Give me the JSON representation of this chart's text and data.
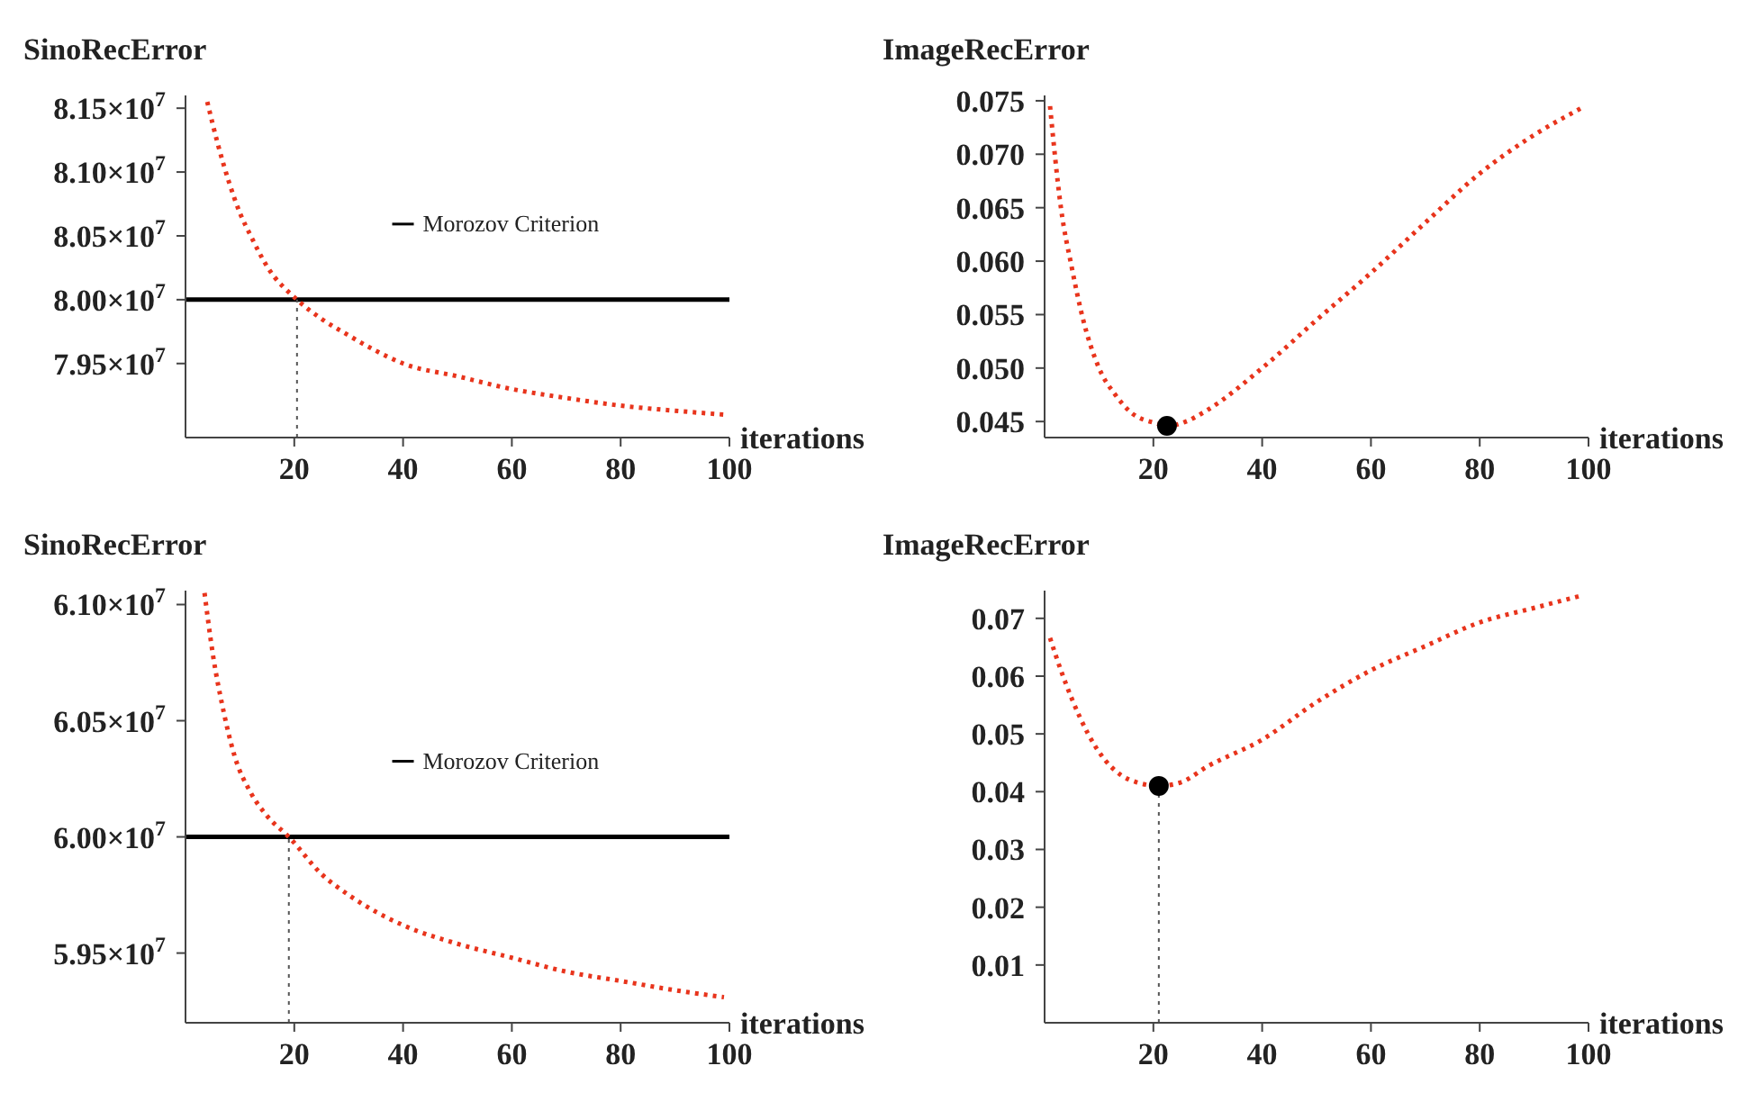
{
  "chart_data": [
    {
      "type": "line",
      "ylabel": "SinoRecError",
      "xlabel": "iterations",
      "xlim": [
        0,
        100
      ],
      "xticks": [
        20,
        40,
        60,
        80,
        100
      ],
      "ylim": [
        78920000,
        81600000
      ],
      "yticks": [
        {
          "value": 79500000,
          "label": "7.95×10$^{7}$"
        },
        {
          "value": 80000000,
          "label": "8.00×10$^{7}$"
        },
        {
          "value": 80500000,
          "label": "8.05×10$^{7}$"
        },
        {
          "value": 81000000,
          "label": "8.10×10$^{7}$"
        },
        {
          "value": 81500000,
          "label": "8.15×10$^{7}$"
        }
      ],
      "grid": false,
      "marker": "none",
      "line_style": "dotted",
      "series": [
        {
          "color": "#e8341c",
          "x": [
            4,
            6,
            8,
            10,
            12,
            15,
            20.5,
            25,
            30,
            35,
            40,
            50,
            60,
            70,
            80,
            90,
            99
          ],
          "values": [
            81550000,
            81210000,
            80920000,
            80680000,
            80500000,
            80260000,
            80000000,
            79850000,
            79720000,
            79600000,
            79500000,
            79400000,
            79300000,
            79230000,
            79170000,
            79130000,
            79100000
          ]
        }
      ],
      "ref_lines": [
        {
          "axis": "y",
          "value": 80000000,
          "label": "Morozov Criterion",
          "color": "#000000",
          "line_style": "solid"
        },
        {
          "axis": "x",
          "value": 20.5,
          "color": "#555555",
          "line_style": "dotted"
        }
      ]
    },
    {
      "type": "line",
      "ylabel": "ImageRecError",
      "xlabel": "iterations",
      "xlim": [
        0,
        100
      ],
      "xticks": [
        20,
        40,
        60,
        80,
        100
      ],
      "ylim": [
        0.0435,
        0.0755
      ],
      "yticks": [
        {
          "value": 0.045,
          "label": "0.045"
        },
        {
          "value": 0.05,
          "label": "0.050"
        },
        {
          "value": 0.055,
          "label": "0.055"
        },
        {
          "value": 0.06,
          "label": "0.060"
        },
        {
          "value": 0.065,
          "label": "0.065"
        },
        {
          "value": 0.07,
          "label": "0.070"
        },
        {
          "value": 0.075,
          "label": "0.075"
        }
      ],
      "grid": false,
      "marker": "none",
      "line_style": "dotted",
      "series": [
        {
          "color": "#e8341c",
          "x": [
            1,
            3,
            5,
            7,
            10,
            13,
            16,
            20,
            23,
            26,
            30,
            40,
            50,
            60,
            70,
            80,
            90,
            99
          ],
          "values": [
            0.0745,
            0.065,
            0.0594,
            0.0547,
            0.05,
            0.0475,
            0.0458,
            0.0449,
            0.0446,
            0.045,
            0.0461,
            0.05,
            0.0545,
            0.0589,
            0.0636,
            0.0682,
            0.0718,
            0.0744
          ]
        },
        {
          "type": "scatter",
          "marker": "circle",
          "color": "#000000",
          "x": [
            22.5
          ],
          "values": [
            0.0446
          ]
        }
      ]
    },
    {
      "type": "line",
      "ylabel": "SinoRecError",
      "xlabel": "iterations",
      "xlim": [
        0,
        100
      ],
      "xticks": [
        20,
        40,
        60,
        80,
        100
      ],
      "ylim": [
        59200000,
        61060000
      ],
      "yticks": [
        {
          "value": 59500000,
          "label": "5.95×10$^{7}$"
        },
        {
          "value": 60000000,
          "label": "6.00×10$^{7}$"
        },
        {
          "value": 60500000,
          "label": "6.05×10$^{7}$"
        },
        {
          "value": 61000000,
          "label": "6.10×10$^{7}$"
        }
      ],
      "grid": false,
      "marker": "none",
      "line_style": "dotted",
      "series": [
        {
          "color": "#e8341c",
          "x": [
            3.5,
            5,
            7,
            9,
            12,
            15,
            19,
            25,
            30,
            40,
            50,
            60,
            70,
            80,
            90,
            99
          ],
          "values": [
            61050000,
            60790000,
            60540000,
            60350000,
            60190000,
            60090000,
            60000000,
            59840000,
            59750000,
            59620000,
            59540000,
            59480000,
            59420000,
            59380000,
            59340000,
            59310000
          ]
        }
      ],
      "ref_lines": [
        {
          "axis": "y",
          "value": 60000000,
          "label": "Morozov Criterion",
          "color": "#000000",
          "line_style": "solid"
        },
        {
          "axis": "x",
          "value": 19,
          "color": "#555555",
          "line_style": "dotted"
        }
      ]
    },
    {
      "type": "line",
      "ylabel": "ImageRecError",
      "xlabel": "iterations",
      "xlim": [
        0,
        100
      ],
      "xticks": [
        20,
        40,
        60,
        80,
        100
      ],
      "ylim": [
        0,
        0.0748
      ],
      "yticks": [
        0.01,
        0.02,
        0.03,
        0.04,
        0.05,
        0.06,
        0.07
      ],
      "grid": false,
      "marker": "none",
      "line_style": "dotted",
      "series": [
        {
          "color": "#e8341c",
          "x": [
            1,
            3,
            5,
            8,
            11,
            14,
            17,
            21,
            25,
            30,
            40,
            50,
            60,
            70,
            80,
            90,
            99
          ],
          "values": [
            0.0666,
            0.061,
            0.0561,
            0.05,
            0.0456,
            0.0429,
            0.0416,
            0.041,
            0.0416,
            0.0444,
            0.049,
            0.0555,
            0.061,
            0.0652,
            0.0693,
            0.0718,
            0.074
          ]
        },
        {
          "type": "scatter",
          "marker": "circle",
          "color": "#000000",
          "x": [
            21
          ],
          "values": [
            0.041
          ]
        }
      ],
      "ref_lines": [
        {
          "axis": "x",
          "value": 21,
          "color": "#555555",
          "line_style": "dotted"
        }
      ]
    }
  ]
}
